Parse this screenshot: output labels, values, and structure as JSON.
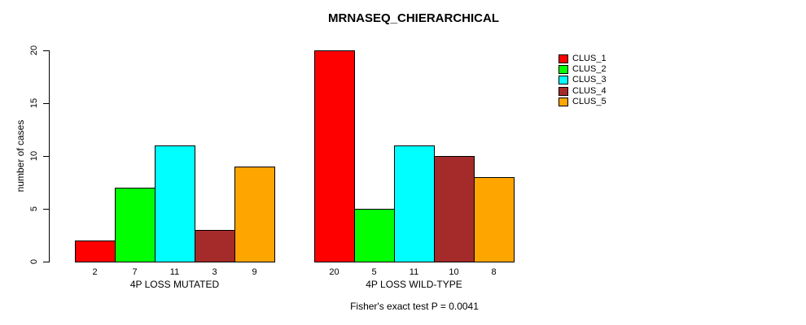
{
  "title": "MRNASEQ_CHIERARCHICAL",
  "caption": "Fisher's exact test P = 0.0041",
  "chart_data": {
    "type": "bar",
    "title": "MRNASEQ_CHIERARCHICAL",
    "xlabel": "",
    "ylabel": "number of cases",
    "ylim": [
      0,
      20
    ],
    "yticks": [
      0,
      5,
      10,
      15,
      20
    ],
    "grid": false,
    "legend_position": "top-right",
    "bar_value_labels_shown": true,
    "annotation": "Fisher's exact test P = 0.0041",
    "series": [
      {
        "name": "CLUS_1",
        "color": "#FF0000"
      },
      {
        "name": "CLUS_2",
        "color": "#00FF00"
      },
      {
        "name": "CLUS_3",
        "color": "#00FFFF"
      },
      {
        "name": "CLUS_4",
        "color": "#A52A2A"
      },
      {
        "name": "CLUS_5",
        "color": "#FFA500"
      }
    ],
    "groups": [
      {
        "label": "4P LOSS MUTATED",
        "values": [
          2,
          7,
          11,
          3,
          9
        ]
      },
      {
        "label": "4P LOSS WILD-TYPE",
        "values": [
          20,
          5,
          11,
          10,
          8
        ]
      }
    ]
  }
}
